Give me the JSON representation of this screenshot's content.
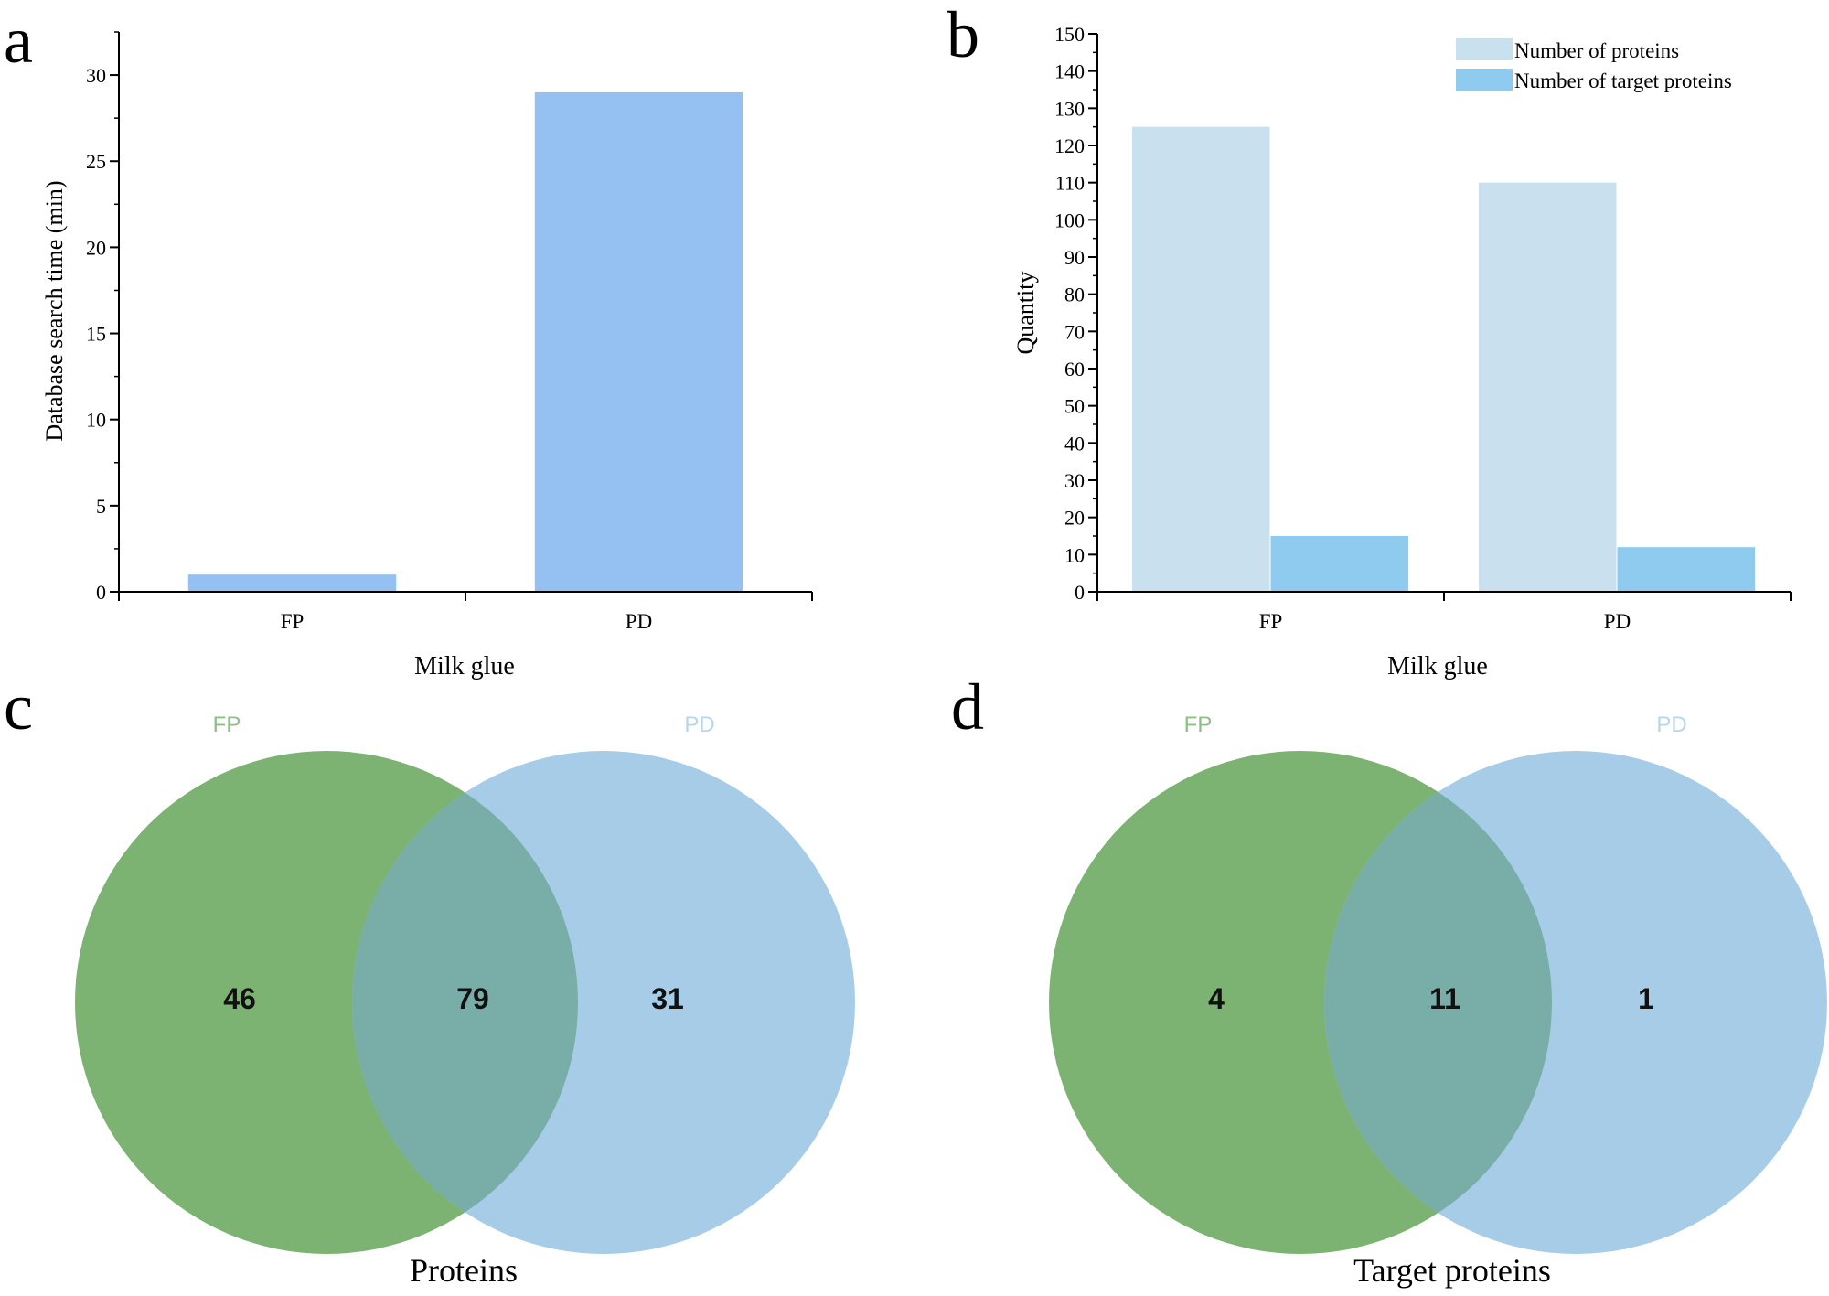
{
  "panels": {
    "a": {
      "letter": "a"
    },
    "b": {
      "letter": "b"
    },
    "c": {
      "letter": "c"
    },
    "d": {
      "letter": "d"
    }
  },
  "colors": {
    "bar_a": "#94c1f2",
    "bar_proteins": "#c9e0ee",
    "bar_target": "#8fcbee",
    "venn_fp": "#7db372",
    "venn_pd": "#a7cce7",
    "label_fp": "#8cc084",
    "label_pd": "#b7d6ea"
  },
  "chart_data": [
    {
      "id": "a",
      "type": "bar",
      "categories": [
        "FP",
        "PD"
      ],
      "values": [
        1,
        29
      ],
      "title": "",
      "xlabel": "Milk glue",
      "ylabel": "Database search time (min)",
      "ylim": [
        0,
        32.5
      ],
      "yticks": [
        0,
        5,
        10,
        15,
        20,
        25,
        30
      ],
      "grid": false
    },
    {
      "id": "b",
      "type": "bar",
      "categories": [
        "FP",
        "PD"
      ],
      "series": [
        {
          "name": "Number of proteins",
          "values": [
            125,
            110
          ]
        },
        {
          "name": "Number of target proteins",
          "values": [
            15,
            12
          ]
        }
      ],
      "title": "",
      "xlabel": "Milk glue",
      "ylabel": "Quantity",
      "ylim": [
        0,
        150
      ],
      "yticks": [
        0,
        10,
        20,
        30,
        40,
        50,
        60,
        70,
        80,
        90,
        100,
        110,
        120,
        130,
        140,
        150
      ],
      "legend": "top-right",
      "grid": false
    },
    {
      "id": "c",
      "type": "venn",
      "sets": [
        "FP",
        "PD"
      ],
      "regions": {
        "fp_only": "46",
        "both": "79",
        "pd_only": "31"
      },
      "title": "Proteins"
    },
    {
      "id": "d",
      "type": "venn",
      "sets": [
        "FP",
        "PD"
      ],
      "regions": {
        "fp_only": "4",
        "both": "11",
        "pd_only": "1"
      },
      "title": "Target proteins"
    }
  ]
}
